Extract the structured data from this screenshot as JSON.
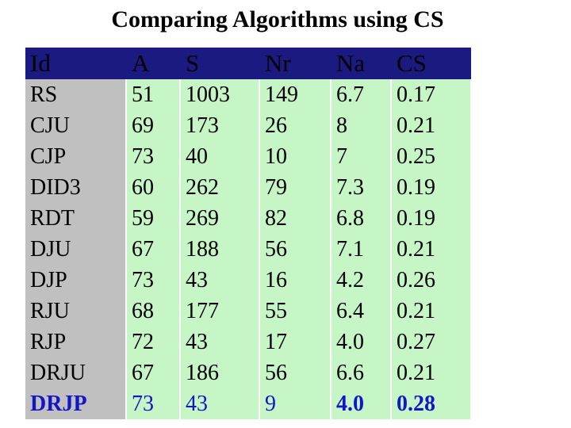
{
  "title": "Comparing Algorithms using CS",
  "columns": [
    "Id",
    "A",
    "S",
    "Nr",
    "Na",
    "CS"
  ],
  "rows": [
    [
      "RS",
      "51",
      "1003",
      "149",
      "6.7",
      "0.17"
    ],
    [
      "CJU",
      "69",
      "173",
      "26",
      "8",
      "0.21"
    ],
    [
      "CJP",
      "73",
      "40",
      "10",
      "7",
      "0.25"
    ],
    [
      "DID3",
      "60",
      "262",
      "79",
      "7.3",
      "0.19"
    ],
    [
      "RDT",
      "59",
      "269",
      "82",
      "6.8",
      "0.19"
    ],
    [
      "DJU",
      "67",
      "188",
      "56",
      "7.1",
      "0.21"
    ],
    [
      "DJP",
      "73",
      "43",
      "16",
      "4.2",
      "0.26"
    ],
    [
      "RJU",
      "68",
      "177",
      "55",
      "6.4",
      "0.21"
    ],
    [
      "RJP",
      "72",
      "43",
      "17",
      "4.0",
      "0.27"
    ],
    [
      "DRJU",
      "67",
      "186",
      "56",
      "6.6",
      "0.21"
    ],
    [
      "DRJP",
      "73",
      "43",
      "9",
      "4.0",
      "0.28"
    ]
  ],
  "colors": {
    "header_bg": "#1a1a80",
    "id_column_bg": "#c0c0c0",
    "value_column_bg": "#c6f5c6",
    "highlight_text": "#1515c8"
  }
}
